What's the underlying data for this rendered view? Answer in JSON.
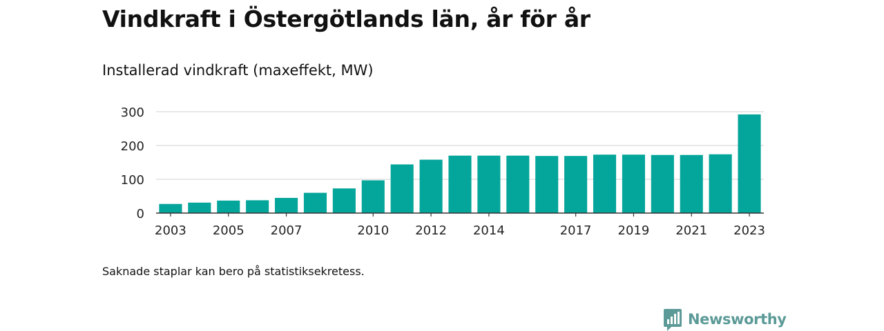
{
  "header": {
    "title": "Vindkraft i Östergötlands län, år för år",
    "subtitle": "Installerad vindkraft (maxeffekt, MW)"
  },
  "footer": {
    "note": "Saknade staplar kan bero på statistiksekretess.",
    "brand": "Newsworthy"
  },
  "colors": {
    "bar": "#04a59a",
    "grid": "#d9d9d9",
    "axis": "#333333",
    "brand": "#5b9a97"
  },
  "chart_data": {
    "type": "bar",
    "categories": [
      "2003",
      "2004",
      "2005",
      "2006",
      "2007",
      "2008",
      "2009",
      "2010",
      "2011",
      "2012",
      "2013",
      "2014",
      "2015",
      "2016",
      "2017",
      "2018",
      "2019",
      "2020",
      "2021",
      "2022",
      "2023"
    ],
    "values": [
      27,
      31,
      37,
      38,
      45,
      60,
      73,
      97,
      144,
      158,
      170,
      170,
      170,
      169,
      169,
      173,
      173,
      172,
      172,
      174,
      292
    ],
    "x_tick_labels": [
      "2003",
      "2005",
      "2007",
      "2010",
      "2012",
      "2014",
      "2017",
      "2019",
      "2021",
      "2023"
    ],
    "y_ticks": [
      0,
      100,
      200,
      300
    ],
    "ylim": [
      0,
      300
    ],
    "xlabel": "",
    "ylabel": "",
    "grid": true,
    "legend": "none"
  }
}
